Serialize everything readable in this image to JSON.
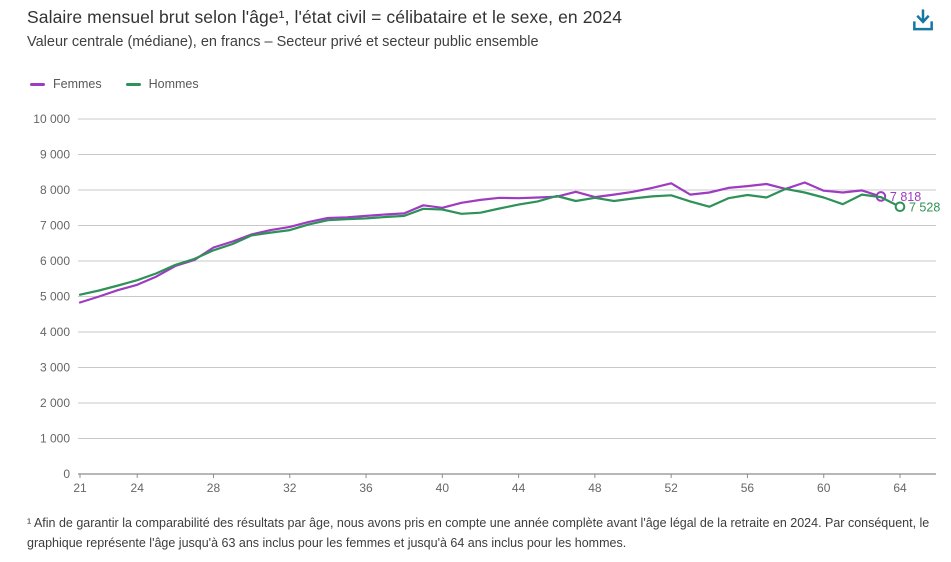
{
  "header": {
    "title": "Salaire mensuel brut selon l'âge¹, l'état civil = célibataire et le sexe, en 2024",
    "subtitle": "Valeur centrale (médiane), en francs – Secteur privé et secteur public ensemble",
    "download_icon": "download-icon",
    "accent_color": "#1776a2"
  },
  "legend": [
    {
      "label": "Femmes",
      "color": "#9e3cc1"
    },
    {
      "label": "Hommes",
      "color": "#2e9158"
    }
  ],
  "chart_data": {
    "type": "line",
    "x_start_age": 21,
    "x_end_age": 64,
    "xticks": [
      21,
      24,
      28,
      32,
      36,
      40,
      44,
      48,
      52,
      56,
      60,
      64
    ],
    "yticks": [
      "0",
      "1 000",
      "2 000",
      "3 000",
      "4 000",
      "5 000",
      "6 000",
      "7 000",
      "8 000",
      "9 000",
      "10 000"
    ],
    "ylim": [
      0,
      10000
    ],
    "grid": "horizontal",
    "legend_position": "top-left",
    "series": [
      {
        "name": "Femmes",
        "color": "#9e3cc1",
        "end_label": "7 818",
        "last_age": 63,
        "values": [
          4830,
          5000,
          5180,
          5330,
          5560,
          5860,
          6030,
          6380,
          6550,
          6750,
          6870,
          6960,
          7100,
          7210,
          7230,
          7270,
          7310,
          7340,
          7570,
          7500,
          7640,
          7720,
          7780,
          7770,
          7790,
          7810,
          7950,
          7800,
          7870,
          7950,
          8060,
          8190,
          7870,
          7930,
          8060,
          8110,
          8170,
          8030,
          8210,
          7980,
          7930,
          7990,
          7818
        ]
      },
      {
        "name": "Hommes",
        "color": "#2e9158",
        "end_label": "7 528",
        "last_age": 64,
        "values": [
          5050,
          5170,
          5310,
          5460,
          5650,
          5890,
          6060,
          6300,
          6480,
          6720,
          6800,
          6870,
          7030,
          7150,
          7180,
          7200,
          7240,
          7270,
          7470,
          7450,
          7330,
          7360,
          7480,
          7590,
          7680,
          7830,
          7690,
          7780,
          7690,
          7760,
          7820,
          7850,
          7680,
          7530,
          7770,
          7860,
          7790,
          8030,
          7930,
          7790,
          7600,
          7870,
          7800,
          7528
        ]
      }
    ]
  },
  "footnote": "¹ Afin de garantir la comparabilité des résultats par âge, nous avons pris en compte une année complète avant l'âge légal de la retraite en 2024. Par conséquent, le graphique représente l'âge jusqu'à 63 ans inclus pour les femmes et jusqu'à 64 ans inclus pour les hommes."
}
